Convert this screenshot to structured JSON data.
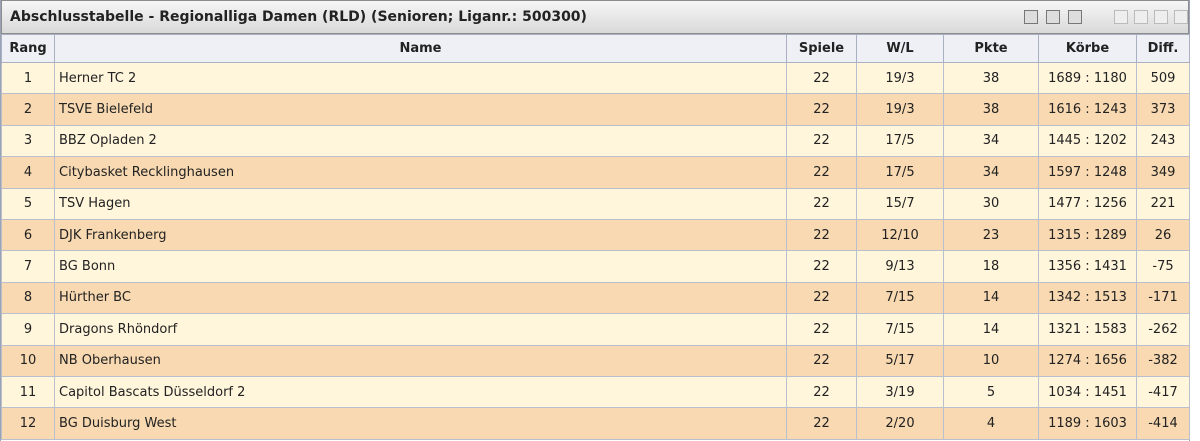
{
  "header": {
    "title": "Abschlusstabelle - Regionalliga Damen (RLD) (Senioren; Liganr.: 500300)"
  },
  "table": {
    "columns": [
      "Rang",
      "Name",
      "Spiele",
      "W/L",
      "Pkte",
      "Körbe",
      "Diff."
    ],
    "rows": [
      [
        1,
        "Herner TC 2",
        22,
        "19/3",
        38,
        "1689 : 1180",
        509
      ],
      [
        2,
        "TSVE Bielefeld",
        22,
        "19/3",
        38,
        "1616 : 1243",
        373
      ],
      [
        3,
        "BBZ Opladen 2",
        22,
        "17/5",
        34,
        "1445 : 1202",
        243
      ],
      [
        4,
        "Citybasket Recklinghausen",
        22,
        "17/5",
        34,
        "1597 : 1248",
        349
      ],
      [
        5,
        "TSV Hagen",
        22,
        "15/7",
        30,
        "1477 : 1256",
        221
      ],
      [
        6,
        "DJK Frankenberg",
        22,
        "12/10",
        23,
        "1315 : 1289",
        26
      ],
      [
        7,
        "BG Bonn",
        22,
        "9/13",
        18,
        "1356 : 1431",
        -75
      ],
      [
        8,
        "Hürther BC",
        22,
        "7/15",
        14,
        "1342 : 1513",
        -171
      ],
      [
        9,
        "Dragons Rhöndorf",
        22,
        "7/15",
        14,
        "1321 : 1583",
        -262
      ],
      [
        10,
        "NB Oberhausen",
        22,
        "5/17",
        10,
        "1274 : 1656",
        -382
      ],
      [
        11,
        "Capitol Bascats Düsseldorf 2",
        22,
        "3/19",
        5,
        "1034 : 1451",
        -417
      ],
      [
        12,
        "BG Duisburg West",
        22,
        "2/20",
        4,
        "1189 : 1603",
        -414
      ]
    ]
  }
}
